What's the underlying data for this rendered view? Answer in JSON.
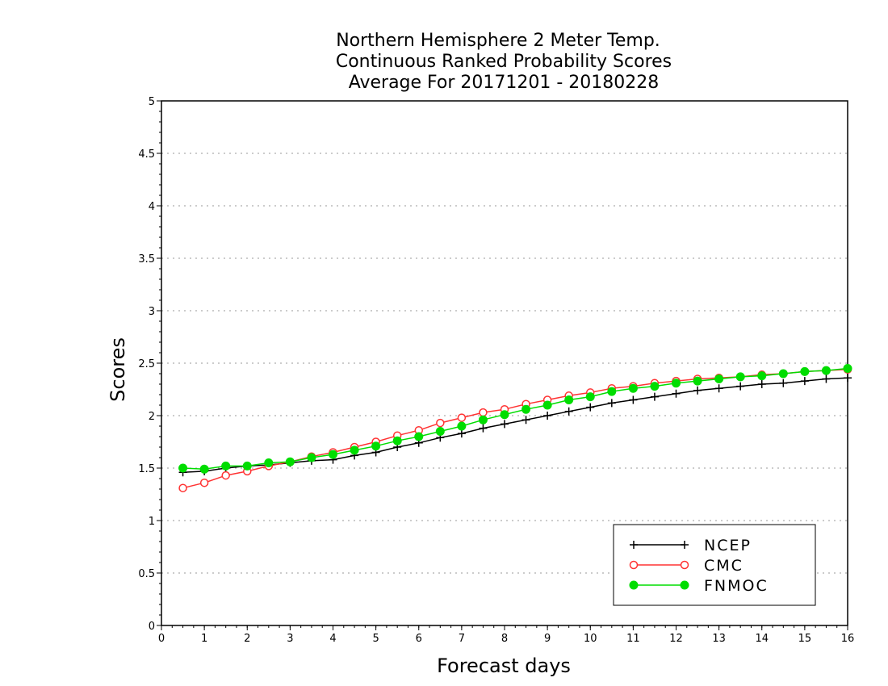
{
  "chart_data": {
    "type": "line",
    "title_lines": [
      "Northern Hemisphere 2 Meter Temp.",
      "Continuous Ranked Probability Scores",
      "Average For 20171201 - 20180228"
    ],
    "xlabel": "Forecast days",
    "ylabel": "Scores",
    "xlim": [
      0,
      16
    ],
    "ylim": [
      0,
      5
    ],
    "xticks": [
      "0",
      "1",
      "2",
      "3",
      "4",
      "5",
      "6",
      "7",
      "8",
      "9",
      "10",
      "11",
      "12",
      "13",
      "14",
      "15",
      "16"
    ],
    "yticks": [
      "0",
      "0.5",
      "1",
      "1.5",
      "2",
      "2.5",
      "3",
      "3.5",
      "4",
      "4.5",
      "5"
    ],
    "grid": "horizontal dotted",
    "legend_position": "bottom-right",
    "x": [
      0.5,
      1,
      1.5,
      2,
      2.5,
      3,
      3.5,
      4,
      4.5,
      5,
      5.5,
      6,
      6.5,
      7,
      7.5,
      8,
      8.5,
      9,
      9.5,
      10,
      10.5,
      11,
      11.5,
      12,
      12.5,
      13,
      13.5,
      14,
      14.5,
      15,
      15.5,
      16
    ],
    "series": [
      {
        "name": "NCEP",
        "color": "#000000",
        "marker": "plus",
        "values": [
          1.46,
          1.47,
          1.5,
          1.52,
          1.53,
          1.55,
          1.57,
          1.58,
          1.62,
          1.65,
          1.7,
          1.74,
          1.79,
          1.83,
          1.88,
          1.92,
          1.96,
          2.0,
          2.04,
          2.08,
          2.12,
          2.15,
          2.18,
          2.21,
          2.24,
          2.26,
          2.28,
          2.3,
          2.31,
          2.33,
          2.35,
          2.36
        ]
      },
      {
        "name": "CMC",
        "color": "#ff3333",
        "marker": "open-circle",
        "values": [
          1.31,
          1.36,
          1.43,
          1.47,
          1.52,
          1.56,
          1.61,
          1.65,
          1.7,
          1.75,
          1.81,
          1.86,
          1.93,
          1.98,
          2.03,
          2.06,
          2.11,
          2.15,
          2.19,
          2.22,
          2.26,
          2.28,
          2.31,
          2.33,
          2.35,
          2.36,
          2.37,
          2.39,
          2.4,
          2.42,
          2.43,
          2.44
        ]
      },
      {
        "name": "FNMOC",
        "color": "#00dd00",
        "marker": "filled-circle",
        "values": [
          1.5,
          1.49,
          1.52,
          1.52,
          1.55,
          1.56,
          1.6,
          1.63,
          1.67,
          1.71,
          1.76,
          1.8,
          1.85,
          1.9,
          1.96,
          2.01,
          2.06,
          2.1,
          2.15,
          2.18,
          2.23,
          2.26,
          2.28,
          2.31,
          2.33,
          2.35,
          2.37,
          2.38,
          2.4,
          2.42,
          2.43,
          2.45
        ]
      }
    ]
  }
}
